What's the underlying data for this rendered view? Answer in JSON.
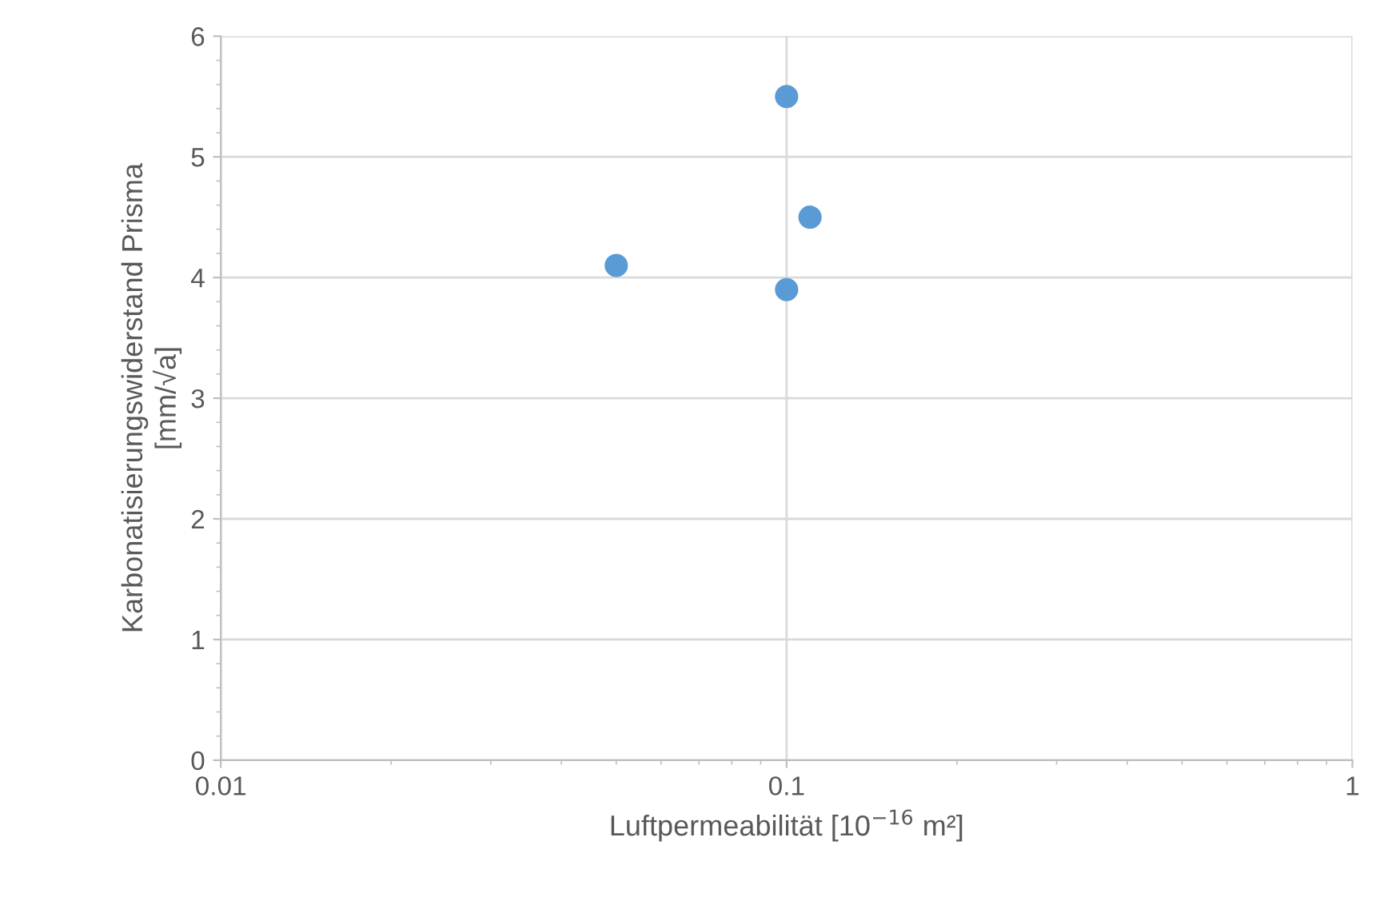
{
  "chart_data": {
    "type": "scatter",
    "xlabel": "Luftpermeabilität [10$^{−16}$ m²]",
    "ylabel": "Karbonatisierungswiderstand Prisma\n[mm/√a]",
    "x": [
      0.05,
      0.1,
      0.1,
      0.11
    ],
    "values": [
      4.1,
      3.9,
      5.5,
      4.5
    ],
    "color": "#5b9bd5",
    "marker": "circle",
    "log": "x",
    "xlim": [
      0.01,
      1
    ],
    "xticks": [
      0.01,
      0.1,
      1
    ],
    "ylim": [
      0,
      6
    ],
    "yticks": [
      0,
      1,
      2,
      3,
      4,
      5,
      6
    ],
    "grid": true,
    "legend": false
  }
}
